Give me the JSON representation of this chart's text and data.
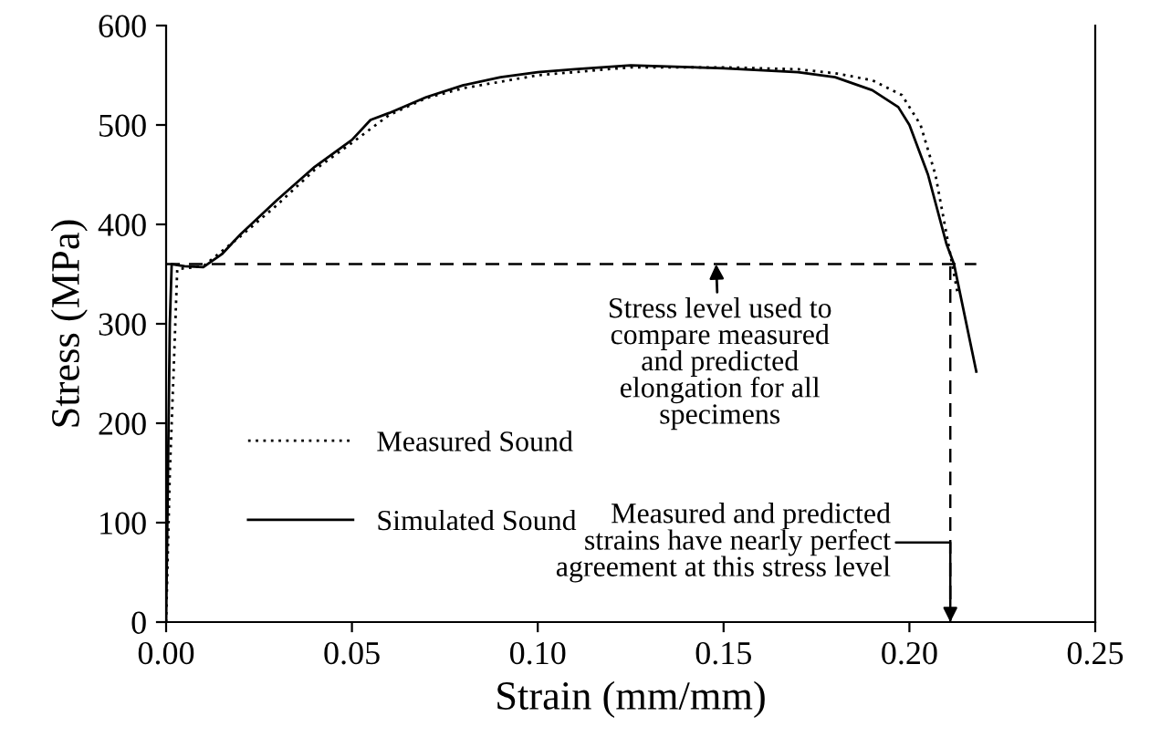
{
  "chart_data": {
    "type": "line",
    "xlabel": "Strain (mm/mm)",
    "ylabel": "Stress (MPa)",
    "xlim": [
      0,
      0.25
    ],
    "xticks": [
      {
        "value": 0,
        "label": "0.00"
      },
      {
        "value": 0.05,
        "label": "0.05"
      },
      {
        "value": 0.1,
        "label": "0.10"
      },
      {
        "value": 0.15,
        "label": "0.15"
      },
      {
        "value": 0.2,
        "label": "0.20"
      },
      {
        "value": 0.25,
        "label": "0.25"
      }
    ],
    "ylim": [
      0,
      600
    ],
    "yticks": [
      0,
      100,
      200,
      300,
      400,
      500,
      600
    ],
    "grid": false,
    "legend": "bottom left",
    "series": [
      {
        "name": "Measured Sound",
        "color": "#000000",
        "line_style": "dotted",
        "x": [
          0,
          0.001,
          0.002,
          0.003,
          0.01,
          0.02,
          0.03,
          0.04,
          0.05,
          0.06,
          0.07,
          0.08,
          0.1,
          0.125,
          0.15,
          0.17,
          0.18,
          0.19,
          0.198,
          0.203,
          0.207,
          0.211,
          0.213
        ],
        "values": [
          0,
          150,
          250,
          355,
          358,
          388,
          420,
          455,
          482,
          510,
          527,
          537,
          550,
          558,
          558,
          556,
          552,
          545,
          530,
          500,
          450,
          370,
          330
        ]
      },
      {
        "name": "Simulated Sound",
        "color": "#000000",
        "line_style": "solid",
        "x": [
          0,
          0.001,
          0.0015,
          0.005,
          0.01,
          0.015,
          0.02,
          0.03,
          0.04,
          0.05,
          0.055,
          0.06,
          0.07,
          0.08,
          0.09,
          0.1,
          0.11,
          0.125,
          0.15,
          0.17,
          0.18,
          0.19,
          0.197,
          0.2,
          0.205,
          0.21,
          0.212,
          0.218
        ],
        "values": [
          0,
          300,
          360,
          358,
          357,
          370,
          390,
          425,
          458,
          485,
          505,
          512,
          528,
          540,
          548,
          553,
          556,
          560,
          557,
          553,
          548,
          535,
          518,
          500,
          450,
          380,
          360,
          252
        ]
      }
    ],
    "ref_lines": [
      {
        "axis": "y",
        "value": 360,
        "color": "#000000",
        "line_style": "dashed"
      },
      {
        "axis": "x",
        "value": 0.211,
        "color": "#000000",
        "line_style": "dashed"
      }
    ],
    "annotations": [
      {
        "text": "Stress level used to\ncompare measured\nand predicted\nelongation for all\nspecimens",
        "x": 0.148,
        "y": 360
      },
      {
        "text": "Measured and predicted\nstrains have nearly perfect\nagreement at this stress level",
        "x": 0.211,
        "y": 0
      }
    ]
  }
}
